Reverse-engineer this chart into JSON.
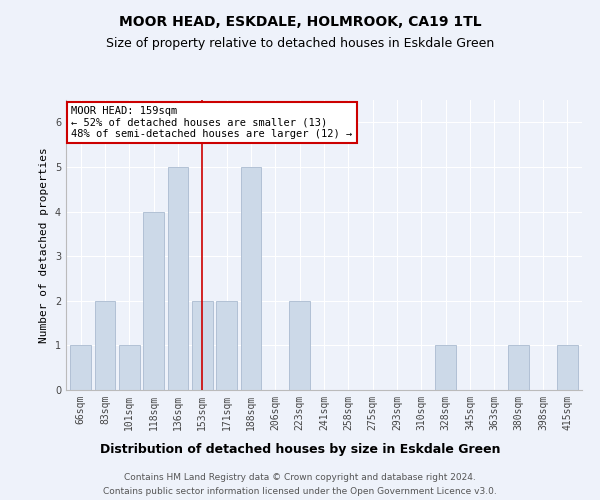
{
  "title": "MOOR HEAD, ESKDALE, HOLMROOK, CA19 1TL",
  "subtitle": "Size of property relative to detached houses in Eskdale Green",
  "xlabel": "Distribution of detached houses by size in Eskdale Green",
  "ylabel": "Number of detached properties",
  "categories": [
    "66sqm",
    "83sqm",
    "101sqm",
    "118sqm",
    "136sqm",
    "153sqm",
    "171sqm",
    "188sqm",
    "206sqm",
    "223sqm",
    "241sqm",
    "258sqm",
    "275sqm",
    "293sqm",
    "310sqm",
    "328sqm",
    "345sqm",
    "363sqm",
    "380sqm",
    "398sqm",
    "415sqm"
  ],
  "values": [
    1,
    2,
    1,
    4,
    5,
    2,
    2,
    5,
    0,
    2,
    0,
    0,
    0,
    0,
    0,
    1,
    0,
    0,
    1,
    0,
    1
  ],
  "bar_color": "#ccd9e8",
  "bar_edge_color": "#aabbd0",
  "vline_x": 5,
  "vline_color": "#cc0000",
  "annotation_title": "MOOR HEAD: 159sqm",
  "annotation_line1": "← 52% of detached houses are smaller (13)",
  "annotation_line2": "48% of semi-detached houses are larger (12) →",
  "annotation_box_color": "#cc0000",
  "ylim": [
    0,
    6.5
  ],
  "yticks": [
    0,
    1,
    2,
    3,
    4,
    5,
    6
  ],
  "footer_line1": "Contains HM Land Registry data © Crown copyright and database right 2024.",
  "footer_line2": "Contains public sector information licensed under the Open Government Licence v3.0.",
  "background_color": "#eef2fa",
  "plot_background": "#eef2fa",
  "title_fontsize": 10,
  "subtitle_fontsize": 9,
  "xlabel_fontsize": 9,
  "ylabel_fontsize": 8,
  "tick_fontsize": 7,
  "annotation_fontsize": 7.5,
  "footer_fontsize": 6.5
}
